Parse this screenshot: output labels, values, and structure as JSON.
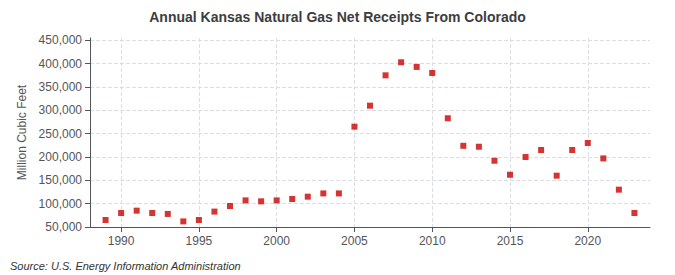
{
  "chart_data": {
    "type": "scatter",
    "title": "Annual Kansas Natural Gas Net Receipts From Colorado",
    "ylabel": "Million Cubic Feet",
    "annotations": [
      "Source: U.S. Energy Information Administration"
    ],
    "x": [
      1989,
      1990,
      1991,
      1992,
      1993,
      1994,
      1995,
      1996,
      1997,
      1998,
      1999,
      2000,
      2001,
      2002,
      2003,
      2004,
      2005,
      2006,
      2007,
      2008,
      2009,
      2010,
      2011,
      2012,
      2013,
      2014,
      2015,
      2016,
      2017,
      2018,
      2019,
      2020,
      2021,
      2022,
      2023
    ],
    "values": [
      65000,
      80000,
      85000,
      80000,
      78000,
      62000,
      65000,
      83000,
      95000,
      107000,
      105000,
      107000,
      110000,
      115000,
      122000,
      122000,
      265000,
      310000,
      375000,
      403000,
      393000,
      380000,
      283000,
      224000,
      222000,
      192000,
      162000,
      200000,
      215000,
      160000,
      215000,
      230000,
      197000,
      130000,
      80000
    ],
    "color": "#cc0000",
    "marker": "square",
    "xlim": [
      1988,
      2024
    ],
    "xticks": [
      1990,
      1995,
      2000,
      2005,
      2010,
      2015,
      2020
    ],
    "ylim": [
      50000,
      455000
    ],
    "yticks": [
      {
        "value": 50000,
        "label": "50,000"
      },
      {
        "value": 100000,
        "label": "100,000"
      },
      {
        "value": 150000,
        "label": "150,000"
      },
      {
        "value": 200000,
        "label": "200,000"
      },
      {
        "value": 250000,
        "label": "250,000"
      },
      {
        "value": 300000,
        "label": "300,000"
      },
      {
        "value": 350000,
        "label": "350,000"
      },
      {
        "value": 400000,
        "label": "400,000"
      },
      {
        "value": 450000,
        "label": "450,000"
      }
    ],
    "grid": true
  }
}
